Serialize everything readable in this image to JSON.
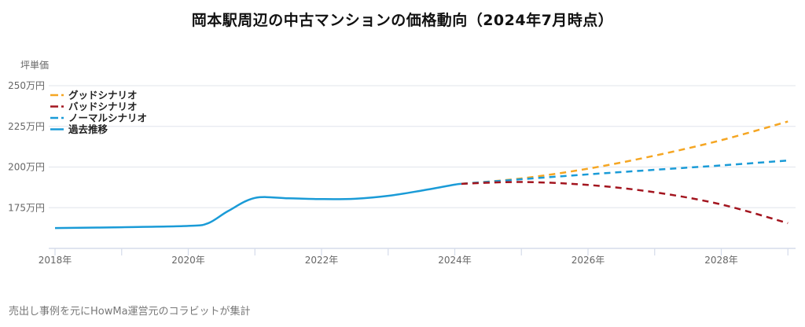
{
  "title": "岡本駅周辺の中古マンションの価格動向（2024年7月時点）",
  "y_unit_label": "坪単価",
  "source_note": "売出し事例を元にHowMa運営元のコラビットが集計",
  "colors": {
    "good": "#f5a623",
    "bad": "#a3151f",
    "normal": "#1a9bd7",
    "history": "#1a9bd7",
    "grid": "#e6e9ef",
    "axis": "#d5dcea"
  },
  "legend": [
    {
      "label": "グッドシナリオ",
      "style": "dashed",
      "color_key": "good"
    },
    {
      "label": "バッドシナリオ",
      "style": "dashed",
      "color_key": "bad"
    },
    {
      "label": "ノーマルシナリオ",
      "style": "dashed",
      "color_key": "normal"
    },
    {
      "label": "過去推移",
      "style": "solid",
      "color_key": "history"
    }
  ],
  "chart_data": {
    "type": "line",
    "title": "岡本駅周辺の中古マンションの価格動向（2024年7月時点）",
    "xlabel": "",
    "ylabel": "坪単価",
    "y_tick_labels": [
      "175万円",
      "200万円",
      "225万円",
      "250万円"
    ],
    "x_tick_labels": [
      "2018年",
      "2020年",
      "2022年",
      "2024年",
      "2026年",
      "2028年"
    ],
    "ylim": [
      150,
      250
    ],
    "xlim": [
      2018,
      2029
    ],
    "grid": true,
    "legend_position": "top-left",
    "series": [
      {
        "name": "過去推移",
        "style": "solid",
        "x": [
          2018.0,
          2019.0,
          2020.0,
          2020.3,
          2020.6,
          2021.0,
          2021.5,
          2022.0,
          2022.5,
          2023.0,
          2023.5,
          2024.0,
          2024.1
        ],
        "y": [
          162.5,
          163.0,
          163.8,
          165.5,
          173.0,
          181.0,
          180.8,
          180.3,
          180.5,
          182.3,
          185.5,
          189.2,
          189.7
        ]
      },
      {
        "name": "グッドシナリオ",
        "style": "dashed",
        "x": [
          2024.1,
          2025.0,
          2026.0,
          2027.0,
          2028.0,
          2029.0
        ],
        "y": [
          189.7,
          193.0,
          199.0,
          207.0,
          216.5,
          228.0
        ]
      },
      {
        "name": "ノーマルシナリオ",
        "style": "dashed",
        "x": [
          2024.1,
          2025.0,
          2026.0,
          2027.0,
          2028.0,
          2029.0
        ],
        "y": [
          189.7,
          192.5,
          195.5,
          198.3,
          201.0,
          204.0
        ]
      },
      {
        "name": "バッドシナリオ",
        "style": "dashed",
        "x": [
          2024.1,
          2025.0,
          2026.0,
          2027.0,
          2028.0,
          2029.0
        ],
        "y": [
          189.7,
          190.8,
          189.0,
          184.5,
          177.0,
          165.5
        ]
      }
    ]
  }
}
